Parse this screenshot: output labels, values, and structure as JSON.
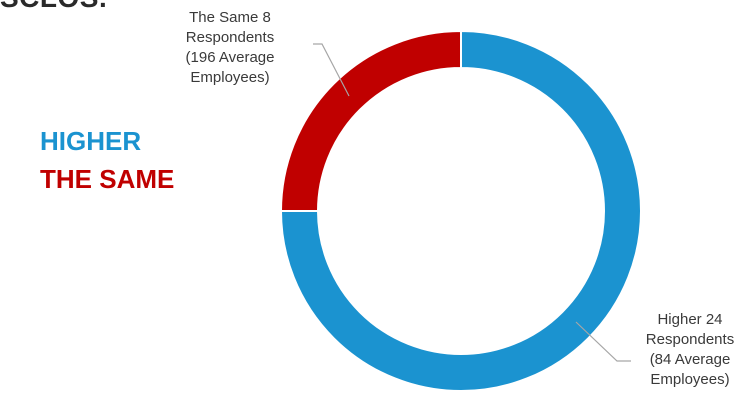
{
  "header": {
    "title_fragment": "SCLOS."
  },
  "legend": {
    "items": [
      {
        "label": "HIGHER",
        "color": "#1b93d0"
      },
      {
        "label": "THE SAME",
        "color": "#c00000"
      }
    ]
  },
  "chart_data": {
    "type": "pie",
    "style": "donut",
    "categories": [
      "Higher",
      "The Same"
    ],
    "values": [
      24,
      8
    ],
    "colors": [
      "#1b93d0",
      "#c00000"
    ],
    "labels": [
      {
        "category": "Higher",
        "lines": [
          "Higher 24",
          "Respondents",
          "(84 Average",
          "Employees)"
        ]
      },
      {
        "category": "The Same",
        "lines": [
          "The Same 8",
          "Respondents",
          "(196 Average",
          "Employees)"
        ]
      }
    ],
    "start": "top, clockwise",
    "legend_position": "left"
  }
}
